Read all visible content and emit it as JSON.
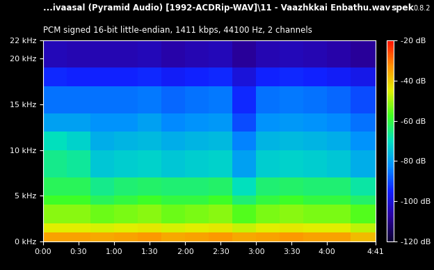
{
  "chart_data": {
    "type": "heatmap",
    "title": "...ivaasal (Pyramid Audio) [1992-ACDRip-WAV]\\11 - Vaazhkkai Enbathu.wav",
    "subtitle": "PCM signed 16-bit little-endian, 1411 kbps, 44100 Hz, 2 channels",
    "annotations": [
      "spek",
      "0.8.2"
    ],
    "xlim": [
      0,
      281
    ],
    "xticks": [
      {
        "value": 0,
        "label": "0:00"
      },
      {
        "value": 30,
        "label": "0:30"
      },
      {
        "value": 60,
        "label": "1:00"
      },
      {
        "value": 90,
        "label": "1:30"
      },
      {
        "value": 120,
        "label": "2:00"
      },
      {
        "value": 150,
        "label": "2:30"
      },
      {
        "value": 180,
        "label": "3:00"
      },
      {
        "value": 210,
        "label": "3:30"
      },
      {
        "value": 240,
        "label": "4:00"
      },
      {
        "value": 281,
        "label": "4:41"
      }
    ],
    "ylim": [
      0,
      22
    ],
    "yticks": [
      {
        "value": 0,
        "label": "0 kHz"
      },
      {
        "value": 5,
        "label": "5 kHz"
      },
      {
        "value": 10,
        "label": "10 kHz"
      },
      {
        "value": 15,
        "label": "15 kHz"
      },
      {
        "value": 20,
        "label": "20 kHz"
      },
      {
        "value": 22,
        "label": "22 kHz"
      }
    ],
    "grid": false,
    "time_edges": [
      0,
      20,
      40,
      60,
      80,
      100,
      120,
      140,
      160,
      180,
      200,
      220,
      240,
      260,
      281
    ],
    "freq_edges": [
      0,
      1,
      2,
      4,
      5,
      7,
      10,
      12,
      14,
      17,
      19,
      22
    ],
    "cells": [
      [
        -35,
        -35,
        -36,
        -35,
        -34,
        -36,
        -35,
        -34,
        -36,
        -35,
        -34,
        -35,
        -35,
        -38
      ],
      [
        -45,
        -45,
        -46,
        -45,
        -44,
        -46,
        -45,
        -44,
        -47,
        -45,
        -44,
        -45,
        -45,
        -48
      ],
      [
        -52,
        -52,
        -54,
        -53,
        -52,
        -54,
        -53,
        -52,
        -56,
        -53,
        -52,
        -53,
        -53,
        -56
      ],
      [
        -58,
        -58,
        -62,
        -60,
        -58,
        -60,
        -60,
        -58,
        -64,
        -60,
        -58,
        -60,
        -60,
        -63
      ],
      [
        -62,
        -62,
        -66,
        -64,
        -63,
        -64,
        -64,
        -63,
        -70,
        -64,
        -63,
        -64,
        -64,
        -68
      ],
      [
        -66,
        -67,
        -74,
        -73,
        -72,
        -74,
        -73,
        -72,
        -80,
        -73,
        -72,
        -73,
        -74,
        -78
      ],
      [
        -70,
        -72,
        -78,
        -77,
        -76,
        -78,
        -77,
        -76,
        -84,
        -77,
        -76,
        -77,
        -78,
        -82
      ],
      [
        -80,
        -80,
        -82,
        -82,
        -80,
        -83,
        -82,
        -81,
        -90,
        -82,
        -81,
        -82,
        -83,
        -86
      ],
      [
        -86,
        -86,
        -86,
        -86,
        -85,
        -87,
        -86,
        -85,
        -94,
        -86,
        -85,
        -86,
        -87,
        -90
      ],
      [
        -94,
        -95,
        -95,
        -95,
        -94,
        -96,
        -95,
        -94,
        -100,
        -95,
        -94,
        -95,
        -96,
        -98
      ],
      [
        -104,
        -105,
        -105,
        -105,
        -104,
        -106,
        -105,
        -104,
        -108,
        -105,
        -104,
        -105,
        -106,
        -108
      ]
    ],
    "colorbar_range": [
      -120,
      -20
    ],
    "colorbar_ticks": [
      {
        "value": -20,
        "label": "-20 dB"
      },
      {
        "value": -40,
        "label": "-40 dB"
      },
      {
        "value": -60,
        "label": "-60 dB"
      },
      {
        "value": -80,
        "label": "-80 dB"
      },
      {
        "value": -100,
        "label": "-100 dB"
      },
      {
        "value": -120,
        "label": "-120 dB"
      }
    ]
  }
}
